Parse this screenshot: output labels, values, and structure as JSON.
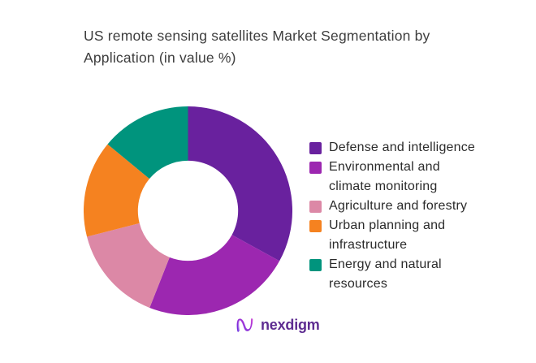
{
  "page": {
    "title": "US remote sensing satellites Market Segmentation by Application (in value %)"
  },
  "chart_data": {
    "type": "pie",
    "subtype": "donut",
    "title": "US remote sensing satellites Market Segmentation by Application (in value %)",
    "unit": "value %",
    "categories": [
      "Defense and intelligence",
      "Environmental and climate monitoring",
      "Agriculture and forestry",
      "Urban planning and infrastructure",
      "Energy and natural resources"
    ],
    "values": [
      33,
      23,
      15,
      15,
      14
    ],
    "colors": [
      "#69219E",
      "#9C27B0",
      "#DC88A6",
      "#F58220",
      "#00947D"
    ],
    "start_angle_deg": 0,
    "direction": "clockwise",
    "inner_radius_ratio": 0.48,
    "legend_position": "right",
    "data_labels_shown": false
  },
  "legend": {
    "items": [
      {
        "label": "Defense and intelligence",
        "color": "#69219E"
      },
      {
        "label": "Environmental and\nclimate monitoring",
        "color": "#9C27B0"
      },
      {
        "label": "Agriculture and forestry",
        "color": "#DC88A6"
      },
      {
        "label": "Urban planning and\ninfrastructure",
        "color": "#F58220"
      },
      {
        "label": "Energy and natural\nresources",
        "color": "#00947D"
      }
    ]
  },
  "footer": {
    "brand": "nexdigm"
  },
  "colors": {
    "title_text": "#3e3e3e",
    "legend_text": "#2b2b2b",
    "brand_purple": "#5e2c91",
    "background": "#ffffff"
  }
}
